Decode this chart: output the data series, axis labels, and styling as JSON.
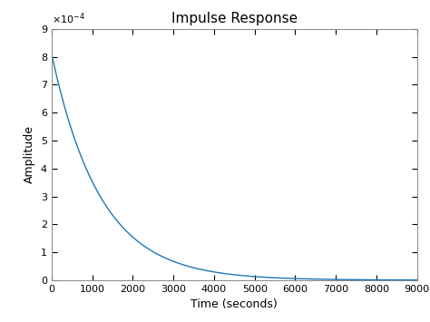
{
  "title": "Impulse Response",
  "xlabel": "Time (seconds)",
  "ylabel": "Amplitude",
  "xlim": [
    0,
    9000
  ],
  "ylim": [
    0,
    0.0009
  ],
  "xticks": [
    0,
    1000,
    2000,
    3000,
    4000,
    5000,
    6000,
    7000,
    8000,
    9000
  ],
  "yticks": [
    0,
    0.0001,
    0.0002,
    0.0003,
    0.0004,
    0.0005,
    0.0006,
    0.0007,
    0.0008,
    0.0009
  ],
  "line_color": "#1f77b4",
  "line_width": 1.0,
  "decay_amplitude": 0.00081,
  "decay_rate": 0.00083,
  "background_color": "#ffffff",
  "title_fontsize": 11,
  "label_fontsize": 9,
  "tick_fontsize": 8,
  "figsize": [
    4.74,
    3.55
  ],
  "dpi": 100
}
